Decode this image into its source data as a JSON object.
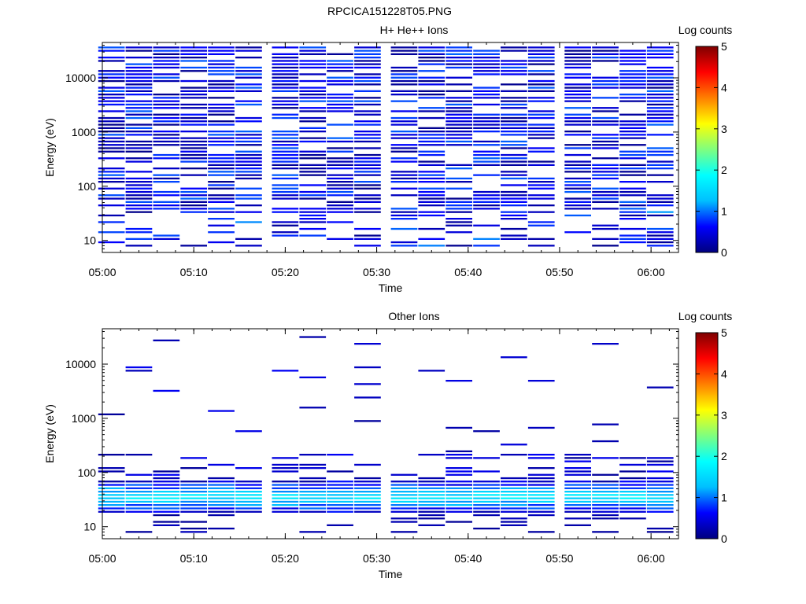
{
  "figure_title": "RPCICA151228T05.PNG",
  "colormap_stops": [
    "#00007f",
    "#0000ff",
    "#00bfff",
    "#00ffff",
    "#7fff7f",
    "#ffff00",
    "#ff7f00",
    "#ff0000",
    "#7f0000"
  ],
  "chart_data": [
    {
      "type": "heatmap",
      "title": "H+ He++ Ions",
      "xlabel": "Time",
      "ylabel": "Energy (eV)",
      "y_scale": "log",
      "ylim": [
        6,
        45000
      ],
      "xlim": [
        "05:00",
        "06:03"
      ],
      "x_ticks": [
        "05:00",
        "05:10",
        "05:20",
        "05:30",
        "05:40",
        "05:50",
        "06:00"
      ],
      "y_ticks": [
        "10",
        "100",
        "1000",
        "10000"
      ],
      "colorbar": {
        "label": "Log counts",
        "range": [
          0,
          5
        ],
        "ticks": [
          "0",
          "1",
          "2",
          "3",
          "4",
          "5"
        ]
      },
      "time_bins": [
        "05:01",
        "05:04",
        "05:07",
        "05:10",
        "05:13",
        "05:16",
        "05:20",
        "05:23",
        "05:26",
        "05:29",
        "05:33",
        "05:36",
        "05:39",
        "05:42",
        "05:45",
        "05:48",
        "05:52",
        "05:55",
        "05:58",
        "06:01"
      ],
      "notes": "Dense low-count coverage (log counts 0-1.2) across 10 eV - 40 keV in every time bin"
    },
    {
      "type": "heatmap",
      "title": "Other Ions",
      "xlabel": "Time",
      "ylabel": "Energy (eV)",
      "y_scale": "log",
      "ylim": [
        6,
        45000
      ],
      "xlim": [
        "05:00",
        "06:03"
      ],
      "x_ticks": [
        "05:00",
        "05:10",
        "05:20",
        "05:30",
        "05:40",
        "05:50",
        "06:00"
      ],
      "y_ticks": [
        "10",
        "100",
        "1000",
        "10000"
      ],
      "colorbar": {
        "label": "Log counts",
        "range": [
          0,
          5
        ],
        "ticks": [
          "0",
          "1",
          "2",
          "3",
          "4",
          "5"
        ]
      },
      "time_bins": [
        "05:01",
        "05:04",
        "05:07",
        "05:10",
        "05:13",
        "05:16",
        "05:20",
        "05:23",
        "05:26",
        "05:29",
        "05:33",
        "05:36",
        "05:39",
        "05:42",
        "05:45",
        "05:48",
        "05:52",
        "05:55",
        "05:58",
        "06:01"
      ],
      "notes": "Main population 20-70 eV peaking ~1.9 log counts near 35 eV; sparse high-energy events"
    }
  ]
}
